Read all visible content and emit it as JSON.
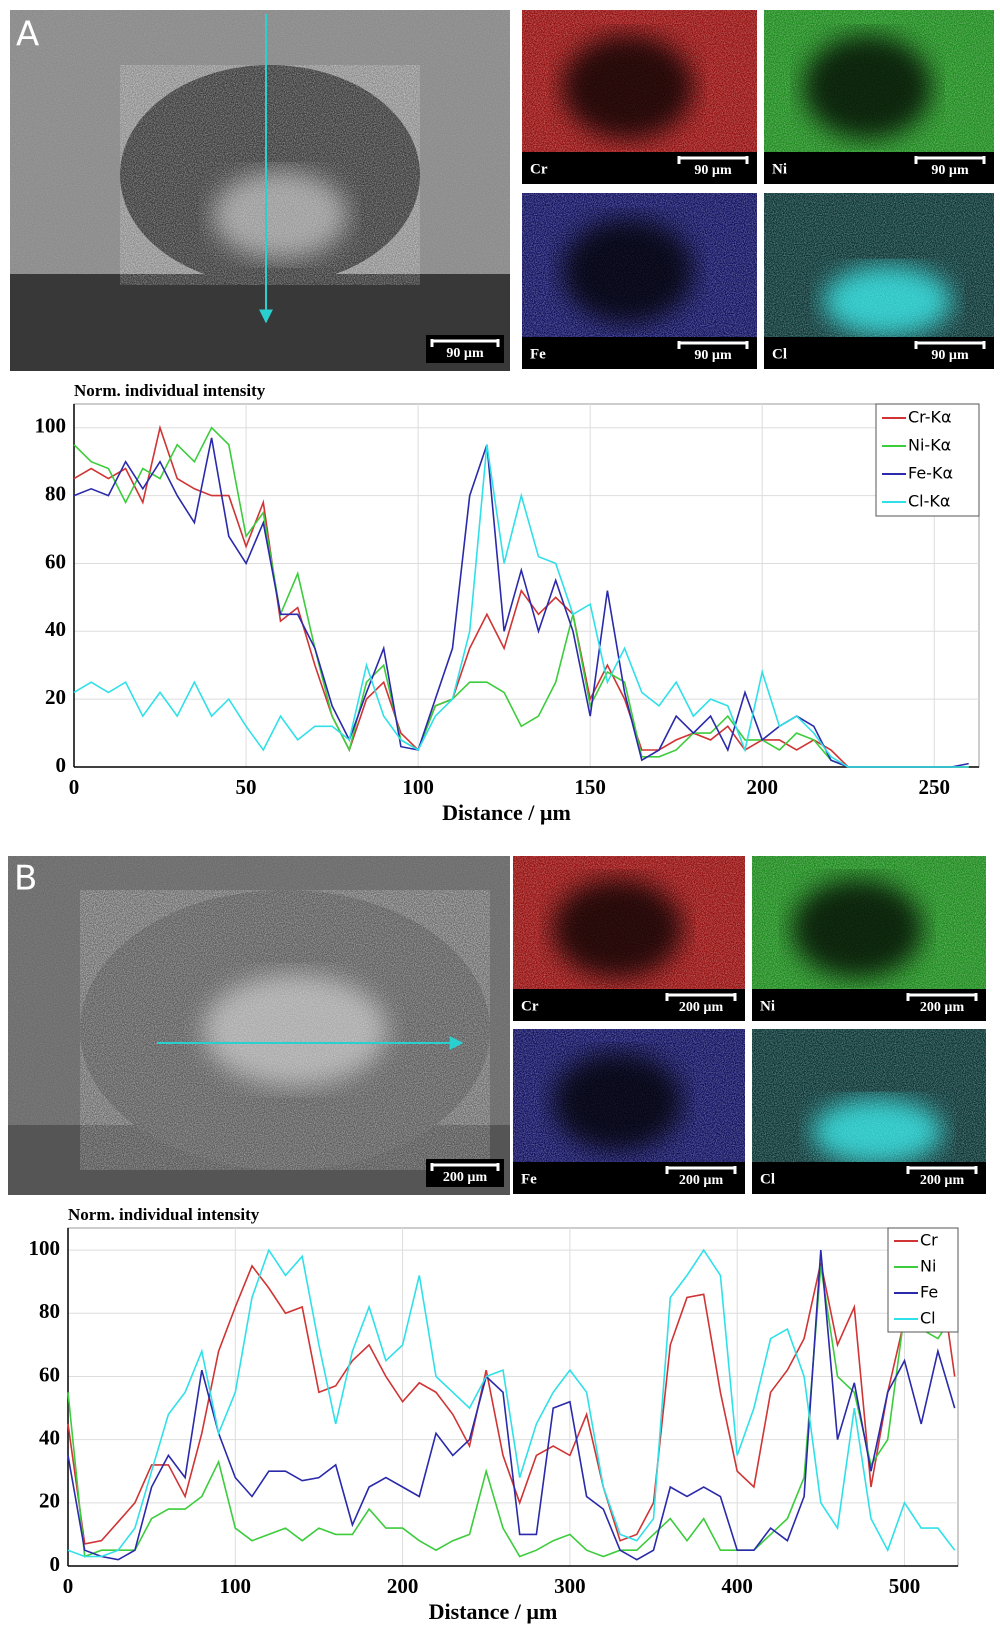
{
  "panels": [
    {
      "label": "A",
      "sem_scale": "90 µm",
      "maps": [
        {
          "element": "Cr",
          "scale": "90 µm"
        },
        {
          "element": "Ni",
          "scale": "90 µm"
        },
        {
          "element": "Fe",
          "scale": "90 µm"
        },
        {
          "element": "Cl",
          "scale": "90 µm"
        }
      ]
    },
    {
      "label": "B",
      "sem_scale": "200 µm",
      "maps": [
        {
          "element": "Cr",
          "scale": "200 µm"
        },
        {
          "element": "Ni",
          "scale": "200 µm"
        },
        {
          "element": "Fe",
          "scale": "200 µm"
        },
        {
          "element": "Cl",
          "scale": "200 µm"
        }
      ]
    }
  ],
  "chart_data": [
    {
      "type": "line",
      "title": "Norm. individual intensity",
      "x_label": "Distance / µm",
      "x": [
        0,
        5,
        10,
        15,
        20,
        25,
        30,
        35,
        40,
        45,
        50,
        55,
        60,
        65,
        70,
        75,
        80,
        85,
        90,
        95,
        100,
        105,
        110,
        115,
        120,
        125,
        130,
        135,
        140,
        145,
        150,
        155,
        160,
        165,
        170,
        175,
        180,
        185,
        190,
        195,
        200,
        205,
        210,
        215,
        220,
        225,
        230,
        235,
        240,
        245,
        250,
        255,
        260
      ],
      "series": [
        {
          "name": "Cr-Kα",
          "color": "#d03434",
          "values": [
            85,
            88,
            85,
            88,
            78,
            100,
            85,
            82,
            80,
            80,
            65,
            78,
            43,
            47,
            30,
            15,
            5,
            20,
            25,
            10,
            5,
            18,
            20,
            35,
            45,
            35,
            52,
            45,
            50,
            45,
            20,
            30,
            20,
            5,
            5,
            8,
            10,
            8,
            12,
            5,
            8,
            8,
            5,
            8,
            5,
            0,
            0,
            0,
            0,
            0,
            0,
            0,
            0
          ]
        },
        {
          "name": "Ni-Kα",
          "color": "#3ccc3c",
          "values": [
            95,
            90,
            88,
            78,
            88,
            85,
            95,
            90,
            100,
            95,
            68,
            75,
            45,
            57,
            35,
            15,
            5,
            25,
            30,
            8,
            5,
            18,
            20,
            25,
            25,
            22,
            12,
            15,
            25,
            45,
            18,
            28,
            25,
            3,
            3,
            5,
            10,
            10,
            15,
            8,
            8,
            5,
            10,
            8,
            2,
            0,
            0,
            0,
            0,
            0,
            0,
            0,
            0
          ]
        },
        {
          "name": "Fe-Kα",
          "color": "#2a2aaa",
          "values": [
            80,
            82,
            80,
            90,
            82,
            90,
            80,
            72,
            97,
            68,
            60,
            72,
            45,
            45,
            35,
            18,
            8,
            22,
            35,
            6,
            5,
            20,
            35,
            80,
            95,
            40,
            58,
            40,
            55,
            40,
            15,
            52,
            22,
            2,
            5,
            15,
            10,
            15,
            5,
            22,
            8,
            12,
            15,
            12,
            2,
            0,
            0,
            0,
            0,
            0,
            0,
            0,
            1
          ]
        },
        {
          "name": "Cl-Kα",
          "color": "#30e0e8",
          "values": [
            22,
            25,
            22,
            25,
            15,
            22,
            15,
            25,
            15,
            20,
            12,
            5,
            15,
            8,
            12,
            12,
            8,
            30,
            15,
            8,
            5,
            15,
            20,
            40,
            95,
            60,
            80,
            62,
            60,
            45,
            48,
            25,
            35,
            22,
            18,
            25,
            15,
            20,
            18,
            5,
            28,
            12,
            15,
            10,
            3,
            0,
            0,
            0,
            0,
            0,
            0,
            0,
            0
          ]
        }
      ],
      "xlim": [
        0,
        263
      ],
      "ylim": [
        0,
        107
      ],
      "xticks": [
        0,
        50,
        100,
        150,
        200,
        250
      ],
      "yticks": [
        0,
        20,
        40,
        60,
        80,
        100
      ],
      "grid": true,
      "legend": "top-right"
    },
    {
      "type": "line",
      "title": "Norm. individual intensity",
      "x_label": "Distance / µm",
      "x": [
        0,
        10,
        20,
        30,
        40,
        50,
        60,
        70,
        80,
        90,
        100,
        110,
        120,
        130,
        140,
        150,
        160,
        170,
        180,
        190,
        200,
        210,
        220,
        230,
        240,
        250,
        260,
        270,
        280,
        290,
        300,
        310,
        320,
        330,
        340,
        350,
        360,
        370,
        380,
        390,
        400,
        410,
        420,
        430,
        440,
        450,
        460,
        470,
        480,
        490,
        500,
        510,
        520,
        530
      ],
      "series": [
        {
          "name": "Cr",
          "color": "#d03434",
          "values": [
            45,
            7,
            8,
            14,
            20,
            32,
            32,
            22,
            42,
            68,
            82,
            95,
            88,
            80,
            82,
            55,
            57,
            65,
            70,
            60,
            52,
            58,
            55,
            48,
            38,
            62,
            35,
            20,
            35,
            38,
            35,
            48,
            25,
            8,
            10,
            20,
            70,
            85,
            86,
            55,
            30,
            25,
            55,
            62,
            72,
            96,
            70,
            82,
            25,
            55,
            78,
            92,
            98,
            60
          ]
        },
        {
          "name": "Ni",
          "color": "#3ccc3c",
          "values": [
            55,
            3,
            5,
            5,
            5,
            15,
            18,
            18,
            22,
            33,
            12,
            8,
            10,
            12,
            8,
            12,
            10,
            10,
            18,
            12,
            12,
            8,
            5,
            8,
            10,
            30,
            12,
            3,
            5,
            8,
            10,
            5,
            3,
            5,
            5,
            10,
            15,
            8,
            15,
            5,
            5,
            5,
            10,
            15,
            28,
            95,
            60,
            55,
            32,
            40,
            80,
            75,
            72,
            80
          ]
        },
        {
          "name": "Fe",
          "color": "#2a2aaa",
          "values": [
            35,
            5,
            3,
            2,
            5,
            25,
            35,
            28,
            62,
            42,
            28,
            22,
            30,
            30,
            27,
            28,
            32,
            13,
            25,
            28,
            25,
            22,
            42,
            35,
            40,
            60,
            55,
            10,
            10,
            50,
            52,
            22,
            18,
            5,
            2,
            5,
            25,
            22,
            25,
            22,
            5,
            5,
            12,
            8,
            22,
            100,
            40,
            58,
            30,
            55,
            65,
            45,
            68,
            50
          ]
        },
        {
          "name": "Cl",
          "color": "#30e0e8",
          "values": [
            5,
            3,
            3,
            5,
            12,
            30,
            48,
            55,
            68,
            42,
            55,
            85,
            100,
            92,
            98,
            70,
            45,
            68,
            82,
            65,
            70,
            92,
            60,
            55,
            50,
            60,
            62,
            28,
            45,
            55,
            62,
            55,
            25,
            10,
            8,
            15,
            85,
            92,
            100,
            92,
            35,
            50,
            72,
            75,
            60,
            20,
            12,
            50,
            15,
            5,
            20,
            12,
            12,
            5
          ]
        }
      ],
      "xlim": [
        0,
        532
      ],
      "ylim": [
        0,
        107
      ],
      "xticks": [
        0,
        100,
        200,
        300,
        400,
        500
      ],
      "yticks": [
        0,
        20,
        40,
        60,
        80,
        100
      ],
      "grid": true,
      "legend": "top-right"
    }
  ]
}
